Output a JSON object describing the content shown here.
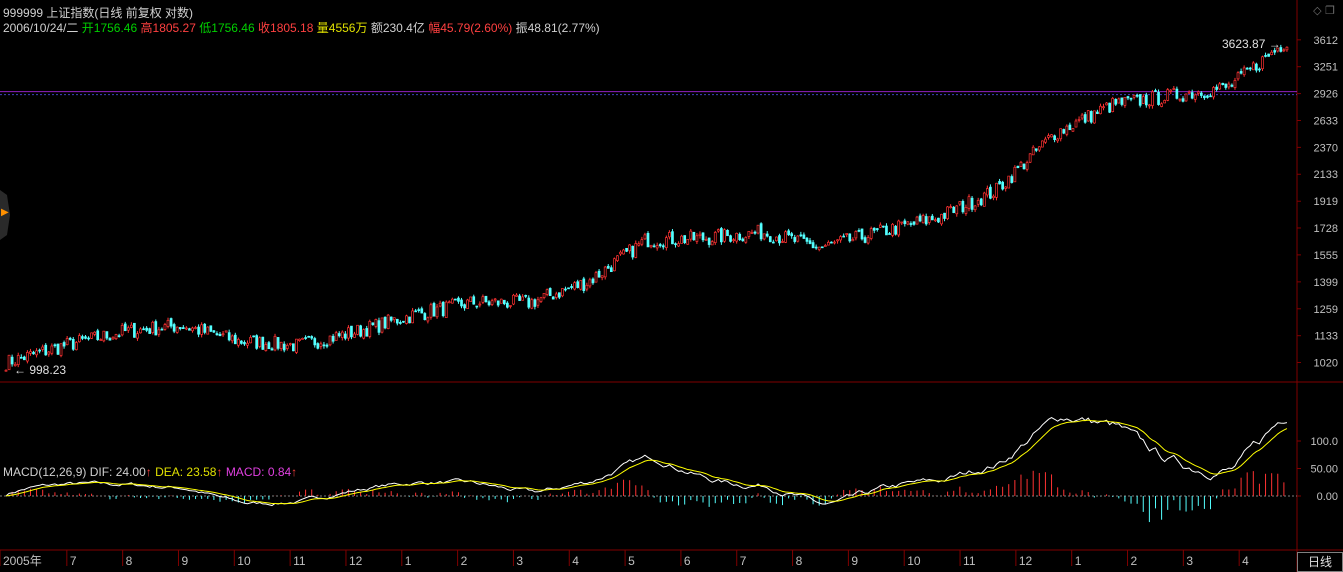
{
  "header": {
    "title": "999999 上证指数(日线 前复权 对数)",
    "date": "2006/10/24/二",
    "open_label": "开",
    "open": "1756.46",
    "high_label": "高",
    "high": "1805.27",
    "low_label": "低",
    "low": "1756.46",
    "close_label": "收",
    "close": "1805.18",
    "volume_label": "量",
    "volume": "4556万",
    "amount_label": "额",
    "amount": "230.4亿",
    "change_label": "幅",
    "change": "45.79(2.60%)",
    "amplitude_label": "振",
    "amplitude": "48.81(2.77%)"
  },
  "price_axis": {
    "ticks": [
      "3612",
      "3251",
      "2926",
      "2633",
      "2370",
      "2133",
      "1919",
      "1728",
      "1555",
      "1399",
      "1259",
      "1133",
      "1020"
    ],
    "max_annotation": "3623.87",
    "min_annotation": "998.23",
    "reference_line": 2926
  },
  "macd": {
    "label": "MACD(12,26,9)",
    "dif_label": "DIF: 24.00",
    "dea_label": "DEA: 23.58",
    "macd_label": "MACD: 0.84",
    "arrow": "↑",
    "axis_ticks": [
      "100.0",
      "50.00",
      "0.00"
    ]
  },
  "time_axis": {
    "labels": [
      "2005年",
      "7",
      "8",
      "9",
      "10",
      "11",
      "12",
      "1",
      "2",
      "3",
      "4",
      "5",
      "6",
      "7",
      "8",
      "9",
      "10",
      "11",
      "12",
      "1",
      "2",
      "3",
      "4"
    ]
  },
  "period_tab": "日线",
  "colors": {
    "up": "#ff3232",
    "down": "#54ffff",
    "dif": "#ffffff",
    "dea": "#ffff00",
    "ref": "#9020c0",
    "grid": "#800000"
  },
  "chart_data": {
    "type": "candlestick",
    "scale": "log",
    "symbol": "999999",
    "range": {
      "high": 3623.87,
      "low": 998.23
    },
    "trend_points": [
      [
        "2005-06",
        1020
      ],
      [
        "2005-07",
        1090
      ],
      [
        "2005-08",
        1150
      ],
      [
        "2005-09",
        1180
      ],
      [
        "2005-10",
        1110
      ],
      [
        "2005-11",
        1090
      ],
      [
        "2005-12",
        1150
      ],
      [
        "2006-01",
        1230
      ],
      [
        "2006-02",
        1290
      ],
      [
        "2006-03",
        1290
      ],
      [
        "2006-04",
        1400
      ],
      [
        "2006-05",
        1650
      ],
      [
        "2006-06",
        1660
      ],
      [
        "2006-07",
        1700
      ],
      [
        "2006-08",
        1600
      ],
      [
        "2006-09",
        1700
      ],
      [
        "2006-10",
        1800
      ],
      [
        "2006-11",
        2000
      ],
      [
        "2006-12",
        2500
      ],
      [
        "2007-01",
        2800
      ],
      [
        "2007-02",
        2900
      ],
      [
        "2007-03",
        3000
      ],
      [
        "2007-04",
        3600
      ]
    ]
  }
}
